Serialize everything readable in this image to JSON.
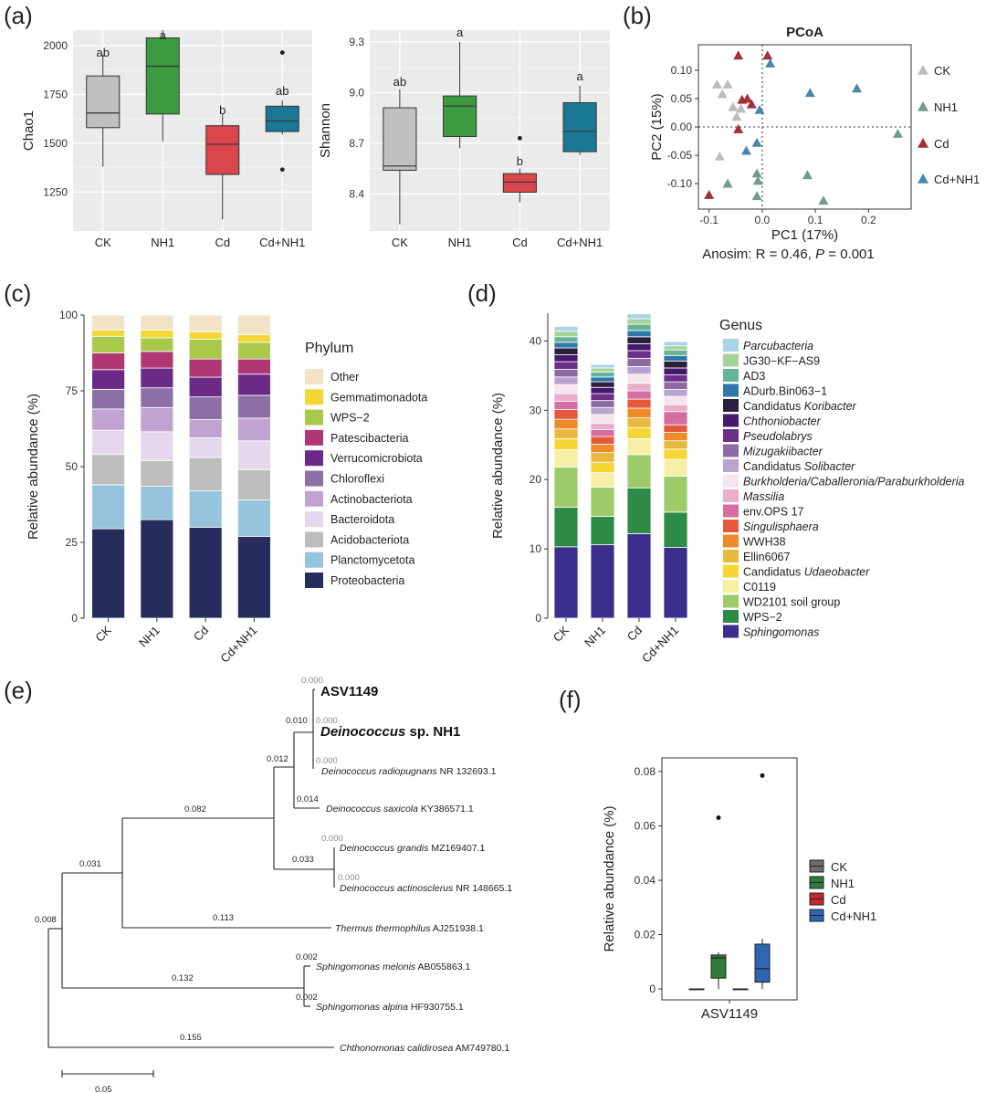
{
  "panels": {
    "a_label": "(a)",
    "b_label": "(b)",
    "c_label": "(c)",
    "d_label": "(d)",
    "e_label": "(e)",
    "f_label": "(f)"
  },
  "chart_data": [
    {
      "id": "a1",
      "type": "box",
      "ylabel": "Chao1",
      "categories": [
        "CK",
        "NH1",
        "Cd",
        "Cd+NH1"
      ],
      "ylim": [
        1050,
        2080
      ],
      "ticks": [
        1250,
        1500,
        1750,
        2000
      ],
      "tick_labels": [
        "1250",
        "1500",
        "1750",
        "2000"
      ],
      "colors": [
        "#c0c0c0",
        "#3e9a40",
        "#d9474c",
        "#1a7896"
      ],
      "boxes": [
        {
          "min": 1380,
          "q1": 1580,
          "med": 1655,
          "q3": 1845,
          "max": 1955,
          "outliers": [],
          "letter": "ab"
        },
        {
          "min": 1510,
          "q1": 1650,
          "med": 1895,
          "q3": 2040,
          "max": 2080,
          "outliers": [],
          "letter": "a"
        },
        {
          "min": 1110,
          "q1": 1340,
          "med": 1495,
          "q3": 1590,
          "max": 1650,
          "outliers": [],
          "letter": "b"
        },
        {
          "min": 1545,
          "q1": 1560,
          "med": 1615,
          "q3": 1690,
          "max": 1720,
          "outliers": [
            1965,
            1365
          ],
          "letter": "ab"
        }
      ]
    },
    {
      "id": "a2",
      "type": "box",
      "ylabel": "Shannon",
      "categories": [
        "CK",
        "NH1",
        "Cd",
        "Cd+NH1"
      ],
      "ylim": [
        8.18,
        9.37
      ],
      "ticks": [
        8.4,
        8.7,
        9.0,
        9.3
      ],
      "tick_labels": [
        "8.4",
        "8.7",
        "9.0",
        "9.3"
      ],
      "colors": [
        "#c0c0c0",
        "#3e9a40",
        "#d9474c",
        "#1a7896"
      ],
      "boxes": [
        {
          "min": 8.22,
          "q1": 8.54,
          "med": 8.565,
          "q3": 8.91,
          "max": 9.02,
          "outliers": [],
          "letter": "ab"
        },
        {
          "min": 8.67,
          "q1": 8.74,
          "med": 8.92,
          "q3": 8.98,
          "max": 9.3,
          "outliers": [],
          "letter": "a"
        },
        {
          "min": 8.35,
          "q1": 8.41,
          "med": 8.47,
          "q3": 8.52,
          "max": 8.55,
          "outliers": [
            8.73
          ],
          "letter": "b"
        },
        {
          "min": 8.63,
          "q1": 8.65,
          "med": 8.77,
          "q3": 8.94,
          "max": 9.04,
          "outliers": [],
          "letter": "a"
        }
      ]
    },
    {
      "id": "b",
      "type": "scatter",
      "title": "PCoA",
      "xlabel": "PC1 (17%)",
      "ylabel": "PC2 (15%)",
      "subtitle": "Anosim: R = 0.46, P = 0.001",
      "xlim": [
        -0.12,
        0.28
      ],
      "ylim": [
        -0.145,
        0.145
      ],
      "xticks": [
        -0.1,
        0.0,
        0.1,
        0.2
      ],
      "xtick_labels": [
        "-0.1",
        "0.0",
        "0.1",
        "0.2"
      ],
      "yticks": [
        -0.1,
        -0.05,
        0.0,
        0.05,
        0.1
      ],
      "ytick_labels": [
        "-0.10",
        "-0.05",
        "0.00",
        "0.05",
        "0.10"
      ],
      "series": [
        {
          "name": "CK",
          "color": "#bdbdbd",
          "x": [
            -0.085,
            -0.065,
            -0.075,
            -0.055,
            -0.04,
            -0.048,
            -0.08
          ],
          "y": [
            0.075,
            0.075,
            0.058,
            0.035,
            0.032,
            0.018,
            -0.052
          ]
        },
        {
          "name": "NH1",
          "color": "#6e9e86",
          "x": [
            -0.008,
            -0.01,
            -0.01,
            0.085,
            0.115,
            -0.065,
            0.255
          ],
          "y": [
            -0.095,
            -0.082,
            -0.122,
            -0.085,
            -0.13,
            -0.1,
            -0.012
          ]
        },
        {
          "name": "Cd",
          "color": "#a33038",
          "x": [
            -0.045,
            0.01,
            -0.038,
            -0.028,
            -0.02,
            -0.045,
            -0.1
          ],
          "y": [
            0.126,
            0.126,
            0.048,
            0.05,
            0.04,
            -0.004,
            -0.12
          ]
        },
        {
          "name": "Cd+NH1",
          "color": "#4a87a8",
          "x": [
            0.015,
            0.09,
            0.178,
            -0.005,
            -0.03,
            -0.01
          ],
          "y": [
            0.112,
            0.06,
            0.068,
            0.03,
            -0.042,
            -0.028
          ]
        }
      ]
    },
    {
      "id": "c",
      "type": "stacked_bar",
      "ylabel": "Relative abundance (%)",
      "categories": [
        "CK",
        "NH1",
        "Cd",
        "Cd+NH1"
      ],
      "ylim": [
        0,
        100
      ],
      "ticks": [
        0,
        25,
        50,
        75,
        100
      ],
      "tick_labels": [
        "0",
        "25",
        "50",
        "75",
        "100"
      ],
      "legend_title": "Phylum",
      "series": [
        {
          "name": "Proteobacteria",
          "color": "#262d5c",
          "values": [
            29.5,
            32.5,
            30.0,
            27.0
          ]
        },
        {
          "name": "Planctomycetota",
          "color": "#97c4dd",
          "values": [
            14.5,
            11.0,
            12.0,
            12.0
          ]
        },
        {
          "name": "Acidobacteriota",
          "color": "#bdbdbd",
          "values": [
            10.0,
            8.5,
            11.0,
            10.0
          ]
        },
        {
          "name": "Bacteroidota",
          "color": "#e6d8ec",
          "values": [
            8.0,
            9.5,
            6.5,
            9.5
          ]
        },
        {
          "name": "Actinobacteriota",
          "color": "#c0a3d0",
          "values": [
            7.0,
            8.0,
            6.0,
            7.5
          ]
        },
        {
          "name": "Chloroflexi",
          "color": "#8b6fa6",
          "values": [
            6.5,
            6.5,
            7.5,
            7.5
          ]
        },
        {
          "name": "Verrucomicrobiota",
          "color": "#6a2a86",
          "values": [
            6.5,
            6.5,
            6.5,
            7.0
          ]
        },
        {
          "name": "Patescibacteria",
          "color": "#b03674",
          "values": [
            5.5,
            5.5,
            6.0,
            5.0
          ]
        },
        {
          "name": "WPS-2",
          "color": "#a9c94b",
          "values": [
            5.5,
            4.5,
            6.5,
            5.5
          ]
        },
        {
          "name": "Gemmatimonadota",
          "color": "#f2d737",
          "values": [
            2.0,
            2.5,
            2.5,
            2.5
          ]
        },
        {
          "name": "Other",
          "color": "#f2e3c6",
          "values": [
            5.0,
            5.0,
            5.5,
            6.5
          ]
        }
      ],
      "legend_order": [
        "Other",
        "Gemmatimonadota",
        "WPS−2",
        "Patescibacteria",
        "Verrucomicrobiota",
        "Chloroflexi",
        "Actinobacteriota",
        "Bacteroidota",
        "Acidobacteriota",
        "Planctomycetota",
        "Proteobacteria"
      ]
    },
    {
      "id": "d",
      "type": "stacked_bar",
      "ylabel": "Relative abundance (%)",
      "categories": [
        "CK",
        "NH1",
        "Cd",
        "Cd+NH1"
      ],
      "ylim": [
        0,
        44
      ],
      "ticks": [
        0,
        10,
        20,
        30,
        40
      ],
      "tick_labels": [
        "0",
        "10",
        "20",
        "30",
        "40"
      ],
      "legend_title": "Genus",
      "series": [
        {
          "name": "Sphingomonas",
          "italic": true,
          "color": "#3a2f8c",
          "values": [
            10.3,
            10.6,
            12.2,
            10.2
          ]
        },
        {
          "name": "WPS−2",
          "color": "#2e8b46",
          "values": [
            5.7,
            4.1,
            6.6,
            5.1
          ]
        },
        {
          "name": "WD2101 soil group",
          "color": "#9ecb6a",
          "values": [
            5.8,
            4.2,
            4.8,
            5.2
          ]
        },
        {
          "name": "C0119",
          "color": "#f7efa6",
          "values": [
            2.5,
            2.1,
            2.3,
            2.4
          ]
        },
        {
          "name": "Candidatus Udaeobacter",
          "italic_part": "Udaeobacter",
          "color": "#f6d635",
          "values": [
            1.6,
            1.5,
            1.6,
            1.5
          ]
        },
        {
          "name": "Ellin6067",
          "color": "#e9b83e",
          "values": [
            1.4,
            1.4,
            1.4,
            1.2
          ]
        },
        {
          "name": "WWH38",
          "color": "#ef8a2a",
          "values": [
            1.4,
            1.2,
            1.4,
            1.2
          ]
        },
        {
          "name": "Singulisphaera",
          "italic": true,
          "color": "#e4583b",
          "values": [
            1.4,
            1.1,
            1.3,
            1.1
          ]
        },
        {
          "name": "env.OPS 17",
          "color": "#d66da1",
          "values": [
            1.2,
            1.0,
            1.2,
            1.9
          ]
        },
        {
          "name": "Massilia",
          "italic": true,
          "color": "#eaaecb",
          "values": [
            1.1,
            0.9,
            1.1,
            1.0
          ]
        },
        {
          "name": "Burkholderia/Caballeronia/Paraburkholderia",
          "italic": true,
          "color": "#f6e4ee",
          "values": [
            1.3,
            1.3,
            1.3,
            1.2
          ]
        },
        {
          "name": "Candidatus Solibacter",
          "italic_part": "Solibacter",
          "color": "#b9a4cf",
          "values": [
            1.1,
            1.0,
            1.1,
            1.0
          ]
        },
        {
          "name": "Mizugakiibacter",
          "italic": true,
          "color": "#8e6aa5",
          "values": [
            1.1,
            1.0,
            1.2,
            1.1
          ]
        },
        {
          "name": "Pseudolabrys",
          "italic": true,
          "color": "#6b2f86",
          "values": [
            1.1,
            1.0,
            1.1,
            1.0
          ]
        },
        {
          "name": "Chthoniobacter",
          "italic": true,
          "color": "#45196b",
          "values": [
            1.0,
            0.9,
            1.0,
            1.0
          ]
        },
        {
          "name": "Candidatus Koribacter",
          "italic_part": "Koribacter",
          "color": "#2a1f3d",
          "values": [
            1.0,
            0.8,
            1.0,
            1.0
          ]
        },
        {
          "name": "ADurb.Bin063−1",
          "color": "#2f77a8",
          "values": [
            0.8,
            0.7,
            0.9,
            0.8
          ]
        },
        {
          "name": "AD3",
          "color": "#66b498",
          "values": [
            0.8,
            0.7,
            0.9,
            0.8
          ]
        },
        {
          "name": "JG30−KF−AS9",
          "color": "#a5d49b",
          "values": [
            0.8,
            0.6,
            0.8,
            0.6
          ]
        },
        {
          "name": "Parcubacteria",
          "italic": true,
          "color": "#a9d4e6",
          "values": [
            0.7,
            0.5,
            0.7,
            0.6
          ]
        }
      ]
    },
    {
      "id": "f",
      "type": "box",
      "ylabel": "Relative abundance (%)",
      "categories": [
        "ASV1149"
      ],
      "ylim": [
        -0.004,
        0.085
      ],
      "ticks": [
        0,
        0.02,
        0.04,
        0.06,
        0.08
      ],
      "tick_labels": [
        "0",
        "0.02",
        "0.04",
        "0.06",
        "0.08"
      ],
      "legend": [
        "CK",
        "NH1",
        "Cd",
        "Cd+NH1"
      ],
      "colors": [
        "#6c6c6c",
        "#2e7a3a",
        "#c62828",
        "#2f66b3"
      ],
      "boxes": [
        {
          "min": 0,
          "q1": 0,
          "med": 0,
          "q3": 0,
          "max": 0,
          "outliers": []
        },
        {
          "min": 0,
          "q1": 0.004,
          "med": 0.0115,
          "q3": 0.0125,
          "max": 0.0135,
          "outliers": [
            0.063
          ]
        },
        {
          "min": 0,
          "q1": 0,
          "med": 0,
          "q3": 0,
          "max": 0,
          "outliers": []
        },
        {
          "min": 0,
          "q1": 0.0025,
          "med": 0.0075,
          "q3": 0.0165,
          "max": 0.0185,
          "outliers": [
            0.0785
          ]
        }
      ]
    }
  ],
  "tree": {
    "scale_label": "0.05",
    "taxa": [
      {
        "id": "asv",
        "label": "ASV1149",
        "bold": true
      },
      {
        "id": "nh1",
        "label_italic": "Deinococcus",
        "label_rest": " sp. NH1",
        "bold": true
      },
      {
        "id": "rad",
        "label": "Deinococcus radiopugnans",
        "acc": " NR 132693.1"
      },
      {
        "id": "sax",
        "label": "Deinococcus saxicola",
        "acc": " KY386571.1"
      },
      {
        "id": "gra",
        "label": "Deinococcus grandis",
        "acc": " MZ169407.1"
      },
      {
        "id": "act",
        "label": "Deinococcus actinosclerus",
        "acc": " NR 148665.1"
      },
      {
        "id": "the",
        "label": "Thermus thermophilus",
        "acc": " AJ251938.1"
      },
      {
        "id": "mel",
        "label": "Sphingomonas melonis",
        "acc": " AB055863.1"
      },
      {
        "id": "alp",
        "label": "Sphingomonas alpina",
        "acc": " HF930755.1"
      },
      {
        "id": "chl",
        "label": "Chthonomonas calidirosea",
        "acc": " AM749780.1"
      }
    ],
    "branch_lengths": [
      "0.000",
      "0.000",
      "0.010",
      "0.000",
      "0.012",
      "0.014",
      "0.082",
      "0.000",
      "0.033",
      "0.000",
      "0.031",
      "0.113",
      "0.008",
      "0.002",
      "0.132",
      "0.002",
      "0.155"
    ]
  }
}
